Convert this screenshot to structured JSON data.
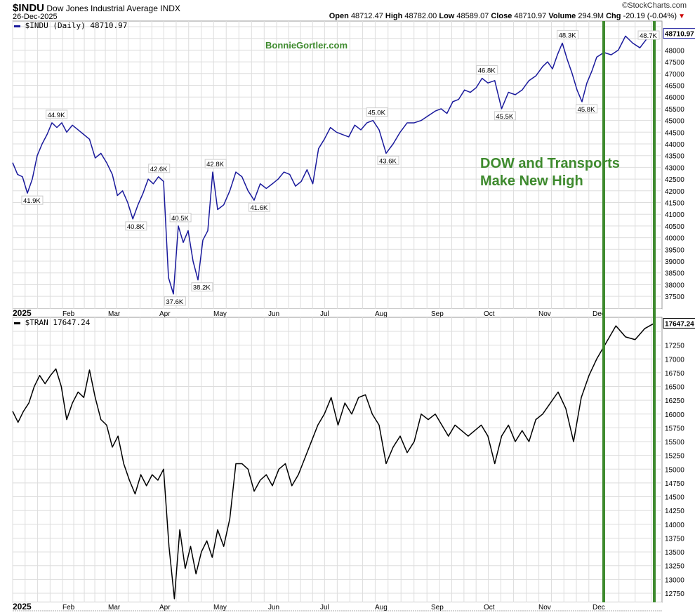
{
  "header": {
    "symbol": "$INDU",
    "name": "Dow Jones Industrial Average",
    "exchange": "INDX",
    "date": "26-Dec-2025",
    "credit": "©StockCharts.com",
    "open_label": "Open",
    "open": "48712.47",
    "high_label": "High",
    "high": "48782.00",
    "low_label": "Low",
    "low": "48589.07",
    "close_label": "Close",
    "close": "48710.97",
    "volume_label": "Volume",
    "volume": "294.9M",
    "chg_label": "Chg",
    "chg": "-20.19 (-0.04%)",
    "chg_arrow": "▼"
  },
  "watermark": "BonnieGortler.com",
  "annotation": {
    "line1": "DOW and Transports",
    "line2": "Make New High"
  },
  "colors": {
    "dow": "#1a1a9c",
    "tran": "#000000",
    "highlight": "#3e8a2e",
    "annotation": "#3e8a2e",
    "grid": "#dddddd"
  },
  "chart_data": [
    {
      "type": "line",
      "title": "$INDU (Daily) 48710.97",
      "legend": "$INDU (Daily) 48710.97",
      "last_value_label": "48710.97",
      "x_tick_labels": [
        "2025",
        "Feb",
        "Mar",
        "Apr",
        "May",
        "Jun",
        "Jul",
        "Aug",
        "Sep",
        "Oct",
        "Nov",
        "Dec"
      ],
      "ylim": [
        37250,
        49250
      ],
      "y_tick_step": 500,
      "y_ticks": [
        37500,
        49000
      ],
      "monthly_values": [
        [
          43200,
          42700,
          42600,
          41900,
          42500,
          43500,
          44000,
          44400,
          44900,
          44700,
          44900
        ],
        [
          44500,
          44800,
          44600,
          44400,
          44200,
          43400,
          43600,
          43200
        ],
        [
          42700,
          41800,
          42000,
          41500,
          40800,
          41400,
          41900,
          42500,
          42300,
          42600
        ],
        [
          42400,
          38300,
          37600,
          40500,
          39800,
          40300,
          39000,
          38200,
          39900,
          40300,
          42800
        ],
        [
          41200,
          41400,
          42000,
          42800,
          42600,
          42000,
          41600,
          42300,
          42100
        ],
        [
          42300,
          42500,
          42800,
          42700,
          42200,
          42400,
          42900,
          42300,
          43800
        ],
        [
          44200,
          44700,
          44500,
          44400,
          44300,
          44800,
          44600,
          44900,
          45000
        ],
        [
          44600,
          43600,
          44000,
          44500,
          44900,
          44900,
          45000,
          45200
        ],
        [
          45400,
          45500,
          45300,
          45800,
          45900,
          46300,
          46200,
          46400,
          46800
        ],
        [
          46600,
          46700,
          45500,
          46200,
          46100,
          46300,
          46700,
          46900
        ],
        [
          47300,
          47500,
          47200,
          47800,
          48300,
          47600,
          47000,
          46300,
          45800,
          46600,
          47100
        ],
        [
          47700,
          47900,
          47800,
          48000,
          48600,
          48300,
          48100,
          48500,
          48710.97
        ]
      ],
      "labels": [
        {
          "text": "41.9K",
          "month": 0.35,
          "value": 41900,
          "pos": "below"
        },
        {
          "text": "44.9K",
          "month": 0.8,
          "value": 44900,
          "pos": "above"
        },
        {
          "text": "40.8K",
          "month": 2.45,
          "value": 40800,
          "pos": "below"
        },
        {
          "text": "42.6K",
          "month": 2.9,
          "value": 42600,
          "pos": "above"
        },
        {
          "text": "37.6K",
          "month": 3.2,
          "value": 37600,
          "pos": "below"
        },
        {
          "text": "40.5K",
          "month": 3.3,
          "value": 40500,
          "pos": "above"
        },
        {
          "text": "38.2K",
          "month": 3.7,
          "value": 38200,
          "pos": "below"
        },
        {
          "text": "42.8K",
          "month": 3.95,
          "value": 42800,
          "pos": "above"
        },
        {
          "text": "41.6K",
          "month": 4.75,
          "value": 41600,
          "pos": "below"
        },
        {
          "text": "45.0K",
          "month": 6.95,
          "value": 45000,
          "pos": "above"
        },
        {
          "text": "43.6K",
          "month": 7.15,
          "value": 43600,
          "pos": "below"
        },
        {
          "text": "46.8K",
          "month": 8.97,
          "value": 46800,
          "pos": "above"
        },
        {
          "text": "45.5K",
          "month": 9.3,
          "value": 45500,
          "pos": "below"
        },
        {
          "text": "48.3K",
          "month": 10.45,
          "value": 48300,
          "pos": "above"
        },
        {
          "text": "45.8K",
          "month": 10.8,
          "value": 45800,
          "pos": "below"
        },
        {
          "text": "48.7K",
          "month": 11.8,
          "value": 48710,
          "pos": "above"
        }
      ]
    },
    {
      "type": "line",
      "title": "$TRAN 17647.24",
      "legend": "$TRAN 17647.24",
      "last_value_label": "17647.24",
      "x_tick_labels": [
        "2025",
        "Feb",
        "Mar",
        "Apr",
        "May",
        "Jun",
        "Jul",
        "Aug",
        "Sep",
        "Oct",
        "Nov",
        "Dec"
      ],
      "ylim": [
        12600,
        17650
      ],
      "y_tick_step": 250,
      "y_ticks": [
        12750,
        17500
      ],
      "monthly_values": [
        [
          16050,
          15850,
          16050,
          16200,
          16500,
          16700,
          16550,
          16700,
          16820,
          16500
        ],
        [
          15900,
          16200,
          16400,
          16300,
          16800,
          16300,
          15900,
          15800
        ],
        [
          15400,
          15600,
          15100,
          14800,
          14550,
          14900,
          14700,
          14900,
          14800
        ],
        [
          15000,
          13600,
          12650,
          13900,
          13200,
          13600,
          13100,
          13500,
          13700,
          13400
        ],
        [
          13900,
          13600,
          14100,
          15100,
          15100,
          15000,
          14600,
          14800,
          14900
        ],
        [
          14700,
          15000,
          15100,
          14700,
          14900,
          15200,
          15500,
          15800
        ],
        [
          16000,
          16300,
          15800,
          16200,
          16000,
          16300,
          16350,
          16000
        ],
        [
          15800,
          15100,
          15400,
          15600,
          15300,
          15500,
          16000,
          15900
        ],
        [
          16000,
          15800,
          15600,
          15800,
          15700,
          15600,
          15700,
          15800
        ],
        [
          15600,
          15100,
          15600,
          15800,
          15500,
          15700,
          15500,
          15900
        ],
        [
          16000,
          16200,
          16400,
          16100,
          15500,
          16300,
          16700
        ],
        [
          17000,
          17300,
          17600,
          17400,
          17350,
          17550,
          17647.24
        ]
      ]
    }
  ],
  "highlight_lines": [
    {
      "month": 11.1
    },
    {
      "month": 11.82
    }
  ]
}
